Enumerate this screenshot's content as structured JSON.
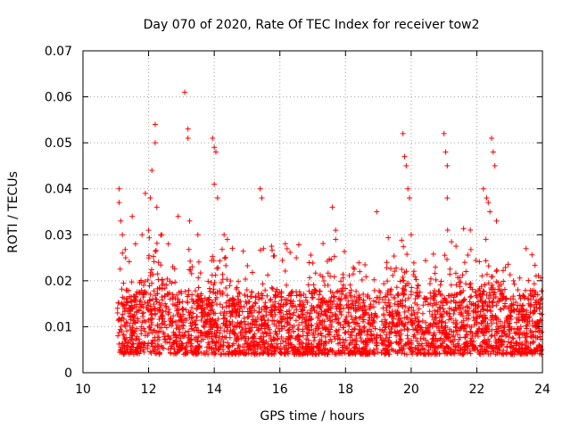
{
  "chart_data": {
    "type": "scatter",
    "title": "Day 070 of 2020, Rate Of TEC Index for receiver tow2",
    "xlabel": "GPS time / hours",
    "ylabel": "ROTI / TECUs",
    "xlim": [
      10,
      24
    ],
    "ylim": [
      0,
      0.07
    ],
    "grid": true,
    "marker": "+",
    "color": "#ff0000",
    "x_ticks": [
      "10",
      "12",
      "14",
      "16",
      "18",
      "20",
      "22",
      "24"
    ],
    "y_ticks": [
      "0",
      "0.01",
      "0.02",
      "0.03",
      "0.04",
      "0.05",
      "0.06",
      "0.07"
    ],
    "series": [
      {
        "name": "ROTI",
        "x": [
          11.1,
          11.1,
          11.15,
          11.2,
          11.2,
          11.3,
          11.5,
          11.6,
          11.8,
          11.9,
          12.0,
          12.05,
          12.1,
          12.2,
          12.2,
          12.25,
          12.3,
          12.4,
          12.6,
          12.9,
          13.1,
          13.2,
          13.2,
          13.25,
          13.5,
          13.95,
          14.0,
          14.05,
          14.0,
          14.1,
          14.3,
          14.4,
          15.4,
          15.45,
          15.5,
          16.5,
          17.6,
          17.7,
          17.7,
          18.95,
          19.75,
          19.8,
          19.85,
          19.9,
          19.95,
          20.0,
          21.0,
          21.05,
          21.1,
          21.1,
          22.2,
          22.3,
          22.35,
          22.4,
          22.45,
          22.5,
          22.55,
          22.6,
          23.5
        ],
        "y": [
          0.04,
          0.037,
          0.033,
          0.03,
          0.026,
          0.025,
          0.034,
          0.028,
          0.03,
          0.039,
          0.031,
          0.038,
          0.044,
          0.054,
          0.05,
          0.036,
          0.024,
          0.03,
          0.028,
          0.034,
          0.061,
          0.053,
          0.051,
          0.033,
          0.03,
          0.051,
          0.049,
          0.048,
          0.041,
          0.038,
          0.03,
          0.029,
          0.04,
          0.038,
          0.027,
          0.025,
          0.036,
          0.031,
          0.029,
          0.035,
          0.052,
          0.047,
          0.045,
          0.04,
          0.038,
          0.03,
          0.052,
          0.048,
          0.045,
          0.038,
          0.04,
          0.038,
          0.037,
          0.035,
          0.051,
          0.048,
          0.045,
          0.033,
          0.027
        ]
      }
    ]
  }
}
